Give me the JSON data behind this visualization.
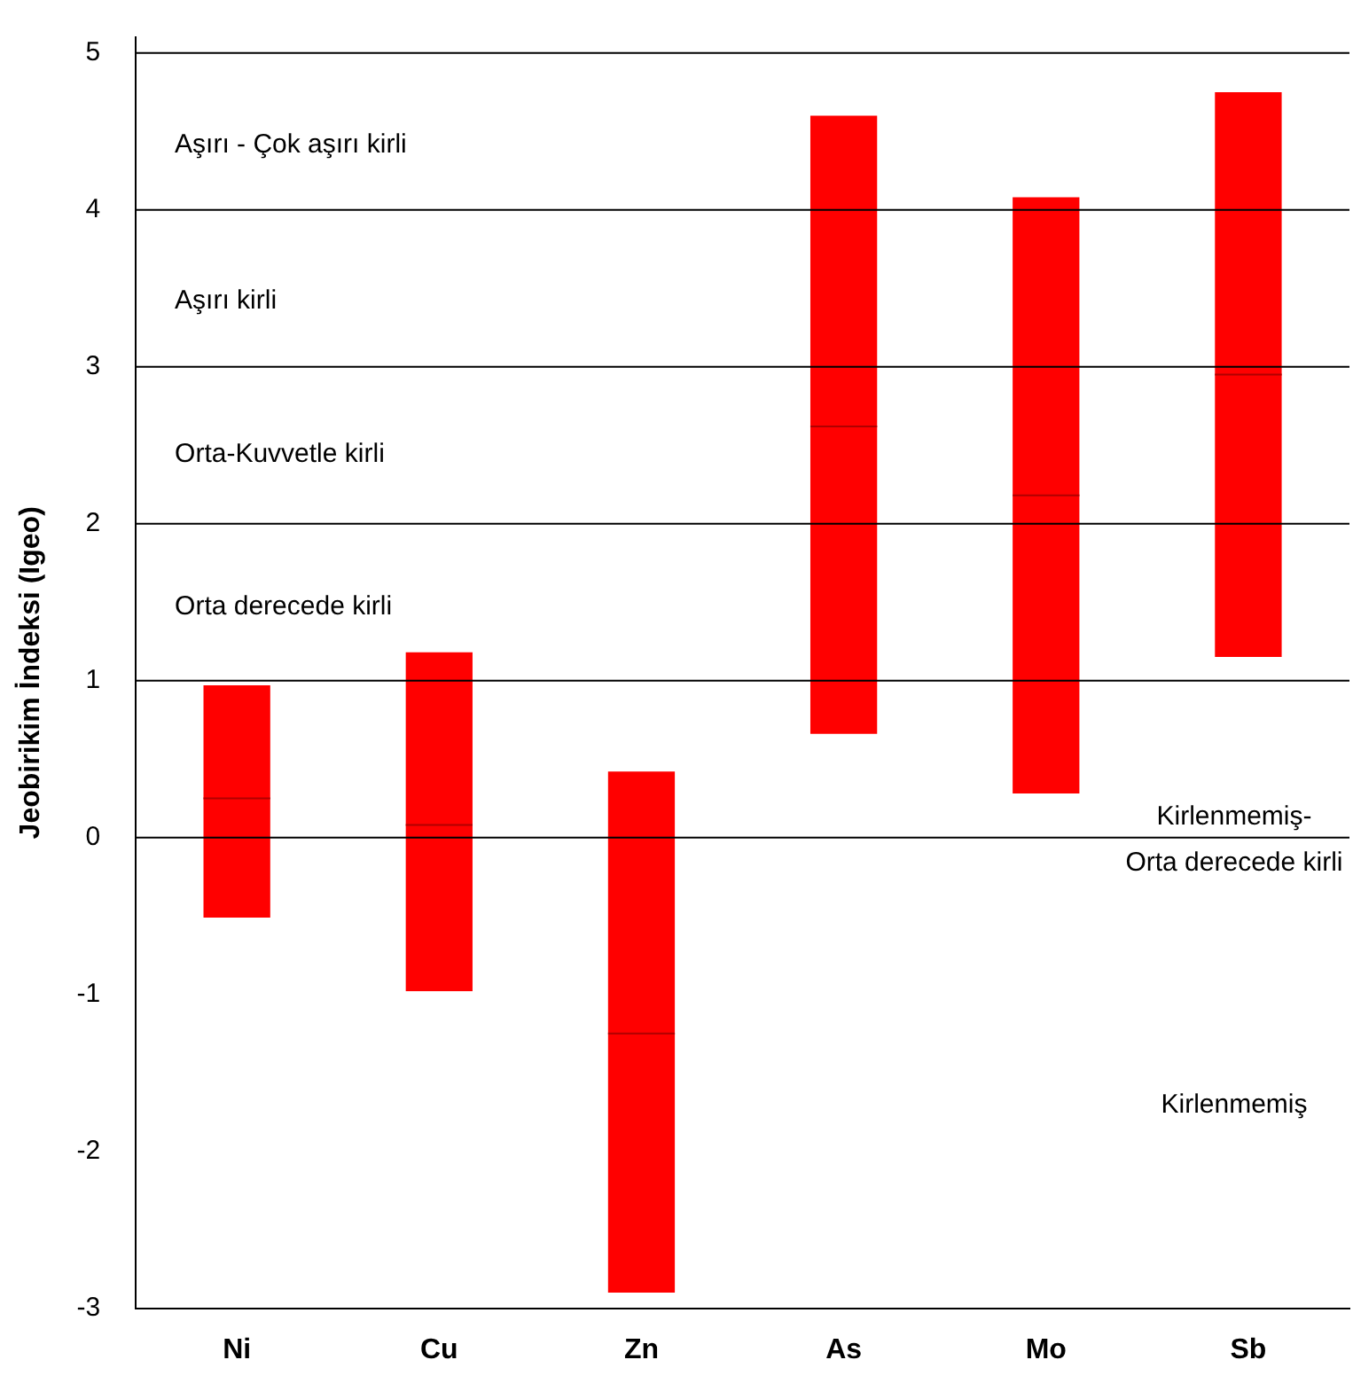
{
  "chart_data": {
    "type": "box",
    "ylabel": "Jeobirikim İndeksi (Igeo)",
    "categories": [
      "Ni",
      "Cu",
      "Zn",
      "As",
      "Mo",
      "Sb"
    ],
    "color": "#ff0000",
    "boxes": [
      {
        "low": -0.51,
        "q1": -0.51,
        "median": 0.25,
        "q3": 0.97,
        "high": 0.97
      },
      {
        "low": -0.98,
        "q1": -0.98,
        "median": 0.08,
        "q3": 1.18,
        "high": 1.18
      },
      {
        "low": -2.9,
        "q1": -2.9,
        "median": -1.25,
        "q3": 0.42,
        "high": 0.42
      },
      {
        "low": 0.66,
        "q1": 0.66,
        "median": 2.62,
        "q3": 4.6,
        "high": 4.6
      },
      {
        "low": 0.28,
        "q1": 0.28,
        "median": 2.18,
        "q3": 4.08,
        "high": 4.08
      },
      {
        "low": 1.15,
        "q1": 1.15,
        "median": 2.95,
        "q3": 4.75,
        "high": 4.75
      }
    ],
    "ylim": [
      -3,
      5.1
    ],
    "yticks": [
      -3,
      -2,
      -1,
      0,
      1,
      2,
      3,
      4,
      5
    ],
    "ref_lines": [
      {
        "axis": "y",
        "value": 0
      },
      {
        "axis": "y",
        "value": 1
      },
      {
        "axis": "y",
        "value": 2
      },
      {
        "axis": "y",
        "value": 3
      },
      {
        "axis": "y",
        "value": 4
      },
      {
        "axis": "y",
        "value": 5
      }
    ],
    "annotations": [
      "Aşırı - Çok aşırı kirli",
      "Aşırı kirli",
      "Orta-Kuvvetle kirli",
      "Orta derecede kirli",
      "Kirlenmemiş-\nOrta derecede kirli",
      "Kirlenmemiş"
    ],
    "grid": false,
    "legend": false
  }
}
